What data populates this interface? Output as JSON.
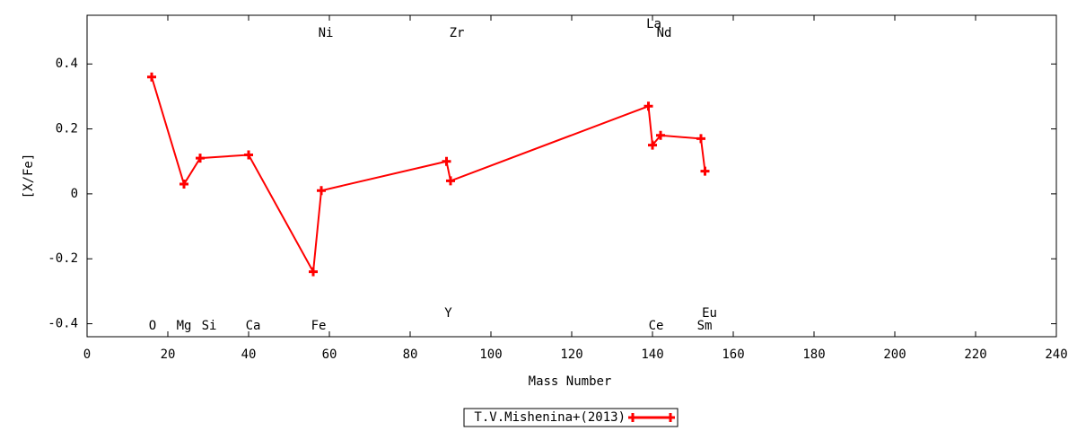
{
  "chart_data": {
    "type": "line",
    "x_label": "Mass Number",
    "y_label": "[X/Fe]",
    "x": [
      16,
      24,
      28,
      40,
      56,
      58,
      89,
      90,
      139,
      140,
      142,
      152,
      153
    ],
    "labels": [
      "O",
      "Mg",
      "Si",
      "Ca",
      "Fe",
      "Ni",
      "Y",
      "Zr",
      "La",
      "Ce",
      "Nd",
      "Sm",
      "Eu"
    ],
    "series": [
      {
        "name": "T.V.Mishenina+(2013)",
        "color": "#ff0000",
        "values": [
          0.36,
          0.03,
          0.11,
          0.12,
          -0.24,
          0.01,
          0.1,
          0.04,
          0.27,
          0.15,
          0.18,
          0.17,
          0.07
        ]
      }
    ],
    "xlim": [
      0,
      240
    ],
    "xticks": [
      0,
      20,
      40,
      60,
      80,
      100,
      120,
      140,
      160,
      180,
      200,
      220,
      240
    ],
    "ylim": [
      -0.44,
      0.55
    ],
    "yticks": [
      -0.4,
      -0.2,
      0,
      0.2,
      0.4
    ],
    "legend": "bottom"
  }
}
